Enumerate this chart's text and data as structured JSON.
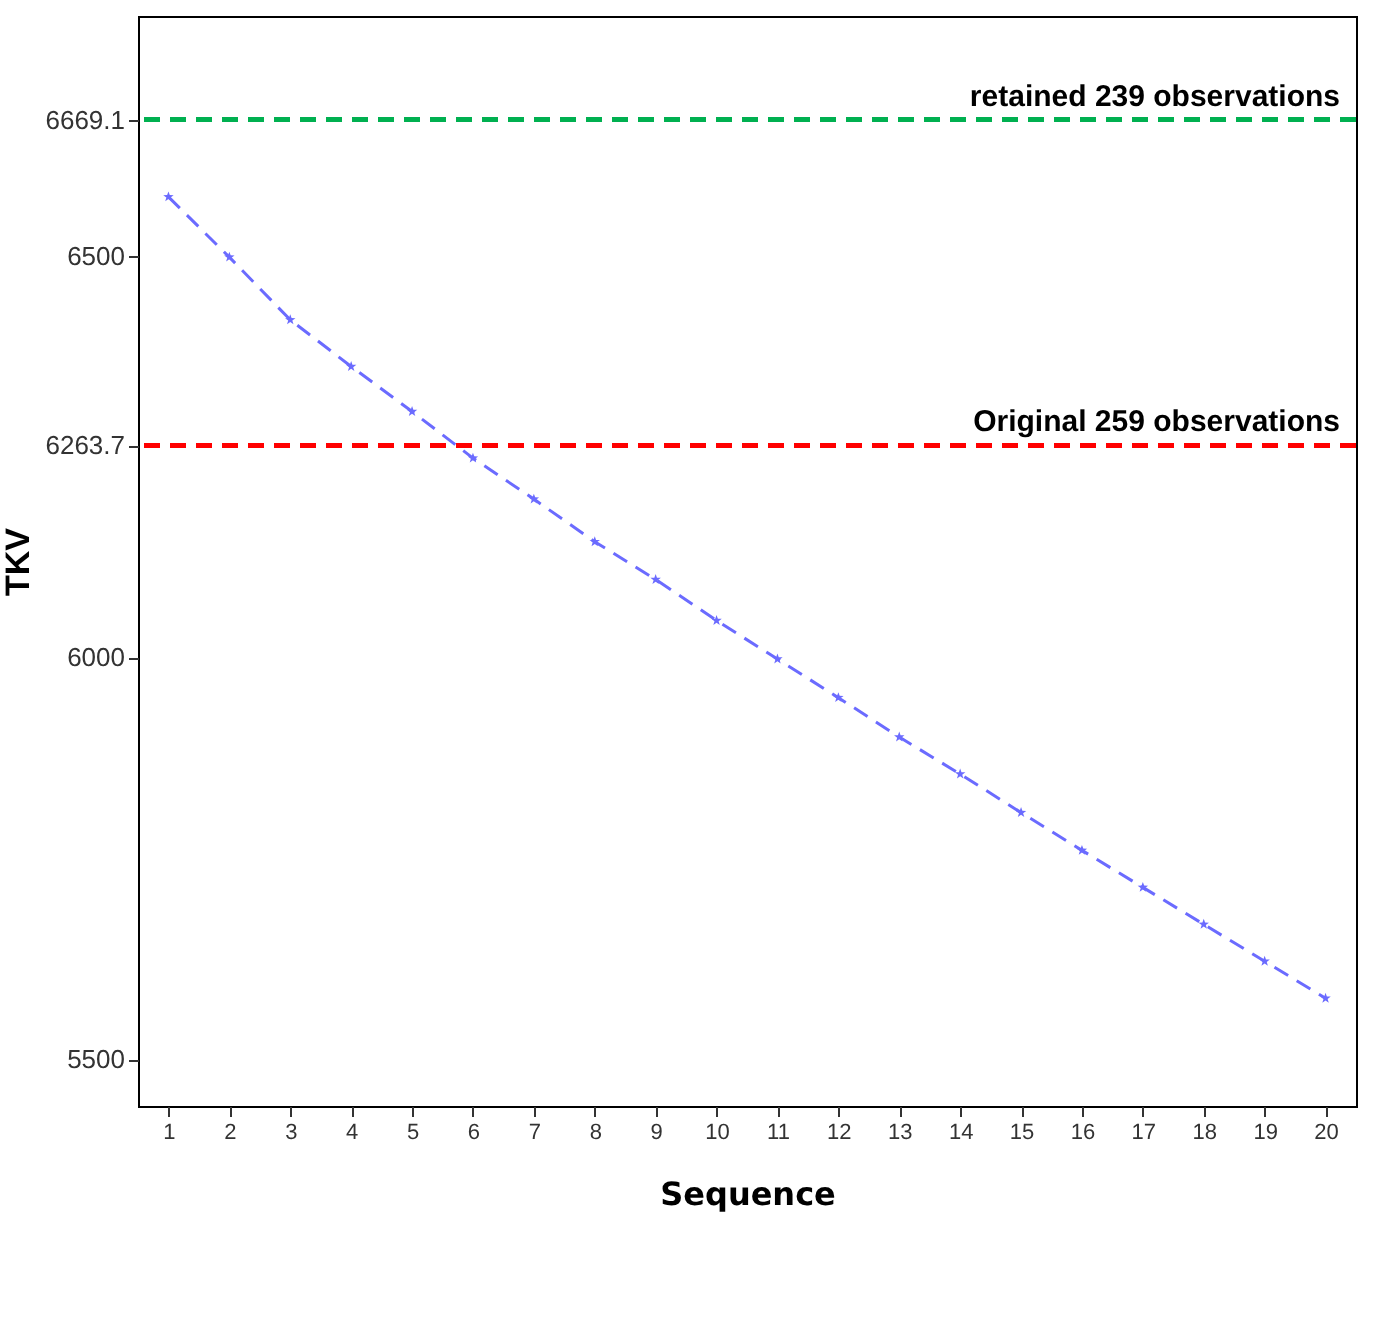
{
  "chart_data": {
    "type": "line",
    "xlabel": "Sequence",
    "ylabel": "TKV",
    "x": [
      1,
      2,
      3,
      4,
      5,
      6,
      7,
      8,
      9,
      10,
      11,
      12,
      13,
      14,
      15,
      16,
      17,
      18,
      19,
      20
    ],
    "series": [
      {
        "color": "#6b6bff",
        "values": [
          6573,
          6498,
          6420,
          6362,
          6306,
          6248,
          6197,
          6144,
          6097,
          6046,
          5998,
          5950,
          5901,
          5855,
          5807,
          5760,
          5714,
          5668,
          5622,
          5576
        ]
      }
    ],
    "xlim": [
      0.5,
      20.5
    ],
    "xticks": [
      1,
      2,
      3,
      4,
      5,
      6,
      7,
      8,
      9,
      10,
      11,
      12,
      13,
      14,
      15,
      16,
      17,
      18,
      19,
      20
    ],
    "ylim": [
      5442,
      6798
    ],
    "yticks": [
      5500,
      6000,
      6500,
      6263.7,
      6669.1
    ],
    "ref_lines": [
      {
        "axis": "y",
        "value": 6669.1,
        "label": "retained 239 observations",
        "color": "#00b050",
        "line_style": "dashed"
      },
      {
        "axis": "y",
        "value": 6263.7,
        "label": "Original 259 observations",
        "color": "#ff0000",
        "line_style": "dashed"
      }
    ],
    "marker": "star",
    "line_style": "dashed",
    "grid": false
  }
}
